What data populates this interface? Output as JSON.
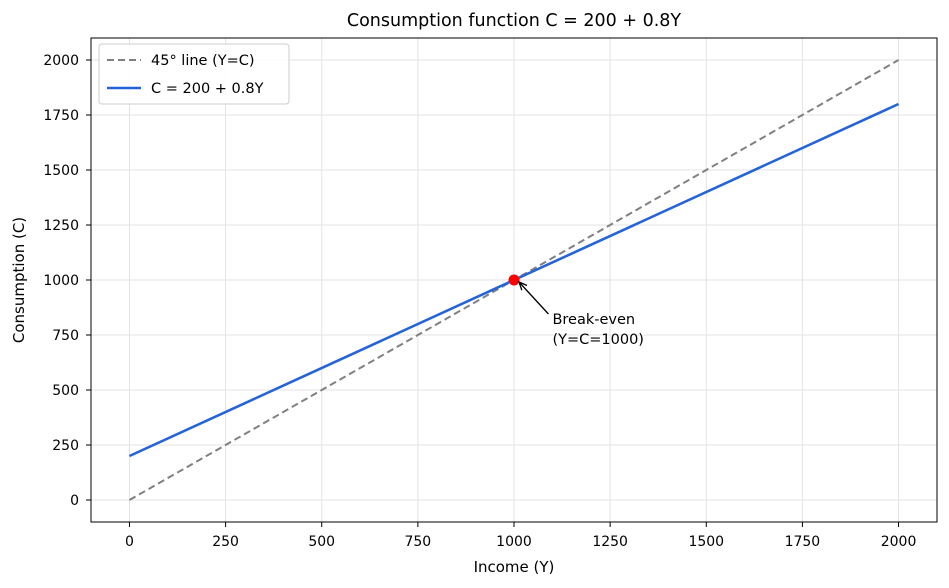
{
  "chart_data": {
    "type": "line",
    "title": "Consumption function C = 200 + 0.8Y",
    "xlabel": "Income (Y)",
    "ylabel": "Consumption (C)",
    "xlim": [
      -100,
      2100
    ],
    "ylim": [
      -100,
      2100
    ],
    "xticks": [
      0,
      250,
      500,
      750,
      1000,
      1250,
      1500,
      1750,
      2000
    ],
    "yticks": [
      0,
      250,
      500,
      750,
      1000,
      1250,
      1500,
      1750,
      2000
    ],
    "grid": true,
    "legend_position": "top-left",
    "series": [
      {
        "name": "45° line (Y=C)",
        "style": "dashed",
        "color": "#808080",
        "x": [
          0,
          2000
        ],
        "y": [
          0,
          2000
        ]
      },
      {
        "name": "C = 200 + 0.8Y",
        "style": "solid",
        "color": "#2563d9",
        "x": [
          0,
          2000
        ],
        "y": [
          200,
          1800
        ]
      }
    ],
    "points": [
      {
        "x": 1000,
        "y": 1000,
        "color": "#ff0000"
      }
    ],
    "annotation": {
      "text_lines": [
        "Break-even",
        "(Y=C=1000)"
      ],
      "point": [
        1000,
        1000
      ],
      "text_at": [
        1100,
        800
      ]
    }
  }
}
